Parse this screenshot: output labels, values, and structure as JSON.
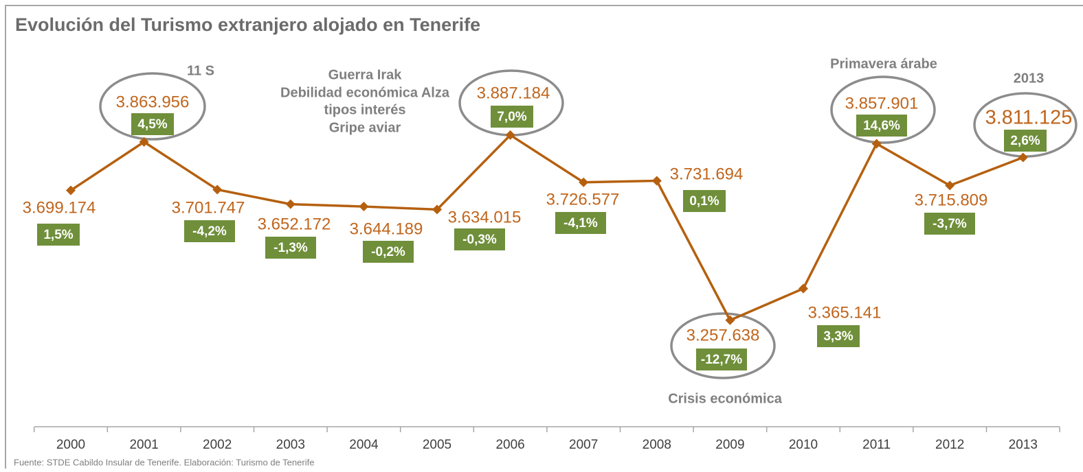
{
  "chart_data": {
    "type": "line",
    "title": "Evolución del Turismo extranjero alojado en Tenerife",
    "source": "Fuente: STDE Cabildo Insular de Tenerife. Elaboración: Turismo de Tenerife",
    "categories": [
      "2000",
      "2001",
      "2002",
      "2003",
      "2004",
      "2005",
      "2006",
      "2007",
      "2008",
      "2009",
      "2010",
      "2011",
      "2012",
      "2013"
    ],
    "values": [
      3699174,
      3863956,
      3701747,
      3652172,
      3644189,
      3634015,
      3887184,
      3726577,
      3731694,
      3257638,
      3365141,
      3857901,
      3715809,
      3811125
    ],
    "value_labels": [
      "3.699.174",
      "3.863.956",
      "3.701.747",
      "3.652.172",
      "3.644.189",
      "3.634.015",
      "3.887.184",
      "3.726.577",
      "3.731.694",
      "3.257.638",
      "3.365.141",
      "3.857.901",
      "3.715.809",
      "3.811.125"
    ],
    "growth_labels": [
      "1,5%",
      "4,5%",
      "-4,2%",
      "-1,3%",
      "-0,2%",
      "-0,3%",
      "7,0%",
      "-4,1%",
      "0,1%",
      "-12,7%",
      "3,3%",
      "14,6%",
      "-3,7%",
      "2,6%"
    ],
    "color": "#b5600f",
    "ylim": [
      2900000,
      4300000
    ],
    "annotations": [
      "11 S",
      "Guerra Irak",
      "Debilidad económica Alza",
      "tipos interés",
      "Gripe aviar",
      "Primavera árabe",
      "2013",
      "Crisis económica"
    ]
  }
}
